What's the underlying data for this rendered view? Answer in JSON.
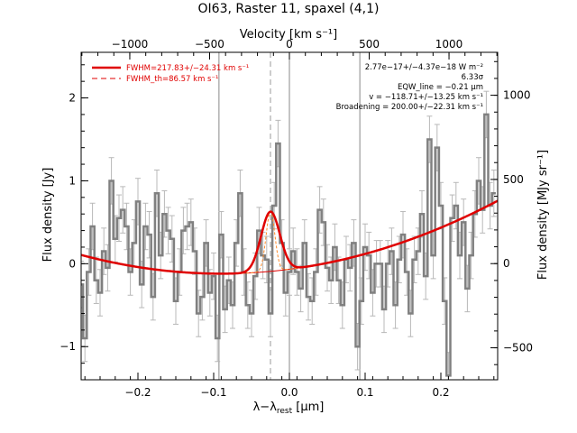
{
  "chart_data": {
    "type": "line",
    "title": "OI63, Raster 11, spaxel (4,1)",
    "xlabel": "λ−λ_rest [μm]",
    "xlabel_html": {
      "main": "λ−λ",
      "sub": "rest",
      "unit": " [μm]"
    },
    "ylabel_left": "Flux density [Jy]",
    "ylabel_right": "Flux density [MJy sr⁻¹]",
    "xlabel_top": "Velocity [km s⁻¹]",
    "xlim": [
      -0.275,
      0.275
    ],
    "ylim": [
      -1.4,
      2.55
    ],
    "y2lim": [
      -690,
      1255
    ],
    "xticks": [
      -0.2,
      -0.1,
      0.0,
      0.1,
      0.2
    ],
    "xtick_labels": [
      "−0.2",
      "−0.1",
      "0.0",
      "0.1",
      "0.2"
    ],
    "yticks": [
      -1,
      0,
      1,
      2
    ],
    "ytick_labels": [
      "−1",
      "0",
      "1",
      "2"
    ],
    "y2ticks": [
      -500,
      0,
      500,
      1000
    ],
    "y2tick_labels": [
      "−500",
      "0",
      "500",
      "1000"
    ],
    "vel_ticks": [
      -1000,
      -500,
      0,
      500,
      1000
    ],
    "vel_tick_labels": [
      "−1000",
      "−500",
      "0",
      "500",
      "1000"
    ],
    "vlines": [
      -0.093,
      0.0,
      0.093
    ],
    "vline_dashed": -0.025,
    "legend": [
      {
        "label": "FWHM=217.83+/−24.31 km s⁻¹",
        "style": "solid",
        "color": "#e00000"
      },
      {
        "label": "FWHM_th=86.57 km s⁻¹",
        "style": "dashed",
        "color": "#e00000"
      }
    ],
    "annotations": [
      "2.77e−17+/−4.37e−18 W m⁻²",
      "6.33σ",
      "EQW_line = −0.21 μm",
      "v = −118.71+/−13.25 km s⁻¹",
      "Broadening = 200.00+/−22.31 km s⁻¹"
    ],
    "fit": {
      "continuum_quadratic": {
        "x0": -0.09,
        "y0": -0.12,
        "a": 6.6
      },
      "gaussian_fit": {
        "center": -0.025,
        "amplitude": 0.72,
        "sigma": 0.0124
      },
      "gaussian_thermal": {
        "center": -0.025,
        "amplitude": 0.72,
        "sigma": 0.0058
      }
    },
    "series": [
      {
        "x": [
          -0.275,
          -0.27,
          -0.265,
          -0.26,
          -0.255,
          -0.25,
          -0.245,
          -0.24,
          -0.235,
          -0.23,
          -0.225,
          -0.22,
          -0.215,
          -0.21,
          -0.205,
          -0.2,
          -0.195,
          -0.19,
          -0.185,
          -0.18,
          -0.175,
          -0.17,
          -0.165,
          -0.16,
          -0.155,
          -0.15,
          -0.145,
          -0.14,
          -0.135,
          -0.13,
          -0.125,
          -0.12,
          -0.115,
          -0.11,
          -0.105,
          -0.1,
          -0.095,
          -0.09,
          -0.085,
          -0.08,
          -0.075,
          -0.07,
          -0.065,
          -0.06,
          -0.055,
          -0.05,
          -0.045,
          -0.04,
          -0.035,
          -0.03,
          -0.025,
          -0.02,
          -0.015,
          -0.01,
          -0.005,
          0.0,
          0.005,
          0.01,
          0.015,
          0.02,
          0.025,
          0.03,
          0.035,
          0.04,
          0.045,
          0.05,
          0.055,
          0.06,
          0.065,
          0.07,
          0.075,
          0.08,
          0.085,
          0.09,
          0.095,
          0.1,
          0.105,
          0.11,
          0.115,
          0.12,
          0.125,
          0.13,
          0.135,
          0.14,
          0.145,
          0.15,
          0.155,
          0.16,
          0.165,
          0.17,
          0.175,
          0.18,
          0.185,
          0.19,
          0.195,
          0.2,
          0.205,
          0.21,
          0.215,
          0.22,
          0.225,
          0.23,
          0.235,
          0.24,
          0.245,
          0.25,
          0.255,
          0.26,
          0.265,
          0.27
        ],
        "y": [
          -0.25,
          -0.9,
          -0.1,
          0.45,
          -0.2,
          -0.35,
          0.15,
          -0.05,
          1.0,
          0.3,
          0.55,
          0.65,
          0.45,
          -0.1,
          0.25,
          0.75,
          -0.25,
          0.45,
          0.35,
          -0.4,
          0.85,
          0.1,
          0.6,
          0.4,
          0.3,
          -0.45,
          -0.1,
          0.4,
          0.45,
          0.5,
          0.15,
          -0.6,
          -0.4,
          0.25,
          -0.35,
          -0.15,
          -0.9,
          0.35,
          -0.55,
          -0.2,
          -0.5,
          0.25,
          0.85,
          -0.1,
          -0.5,
          -0.6,
          -0.15,
          0.4,
          0.1,
          0.05,
          -0.6,
          0.7,
          1.45,
          0.25,
          -0.35,
          -0.1,
          0.15,
          -0.1,
          -0.3,
          0.25,
          -0.4,
          -0.45,
          -0.1,
          0.65,
          0.5,
          -0.05,
          -0.2,
          0.2,
          -0.2,
          -0.5,
          0.05,
          -0.05,
          0.25,
          -1.0,
          -0.45,
          0.2,
          0.1,
          -0.35,
          0.0,
          0.0,
          -0.55,
          0.0,
          0.15,
          -0.5,
          0.05,
          0.35,
          -0.1,
          -0.6,
          0.05,
          0.15,
          0.6,
          -0.15,
          1.5,
          0.1,
          1.4,
          0.7,
          -0.45,
          -1.35,
          0.55,
          0.7,
          0.1,
          0.5,
          -0.3,
          0.1,
          0.6,
          1.0,
          0.65,
          1.8,
          0.7,
          0.85
        ],
        "err": 0.28
      }
    ]
  }
}
